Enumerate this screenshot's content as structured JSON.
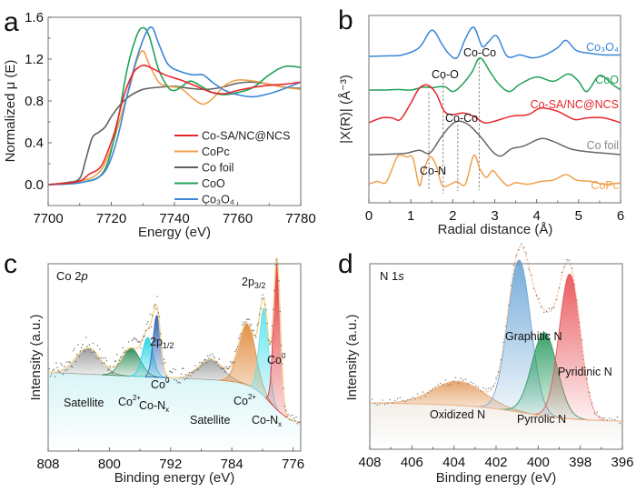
{
  "chart_data": [
    {
      "panel": "a",
      "type": "line",
      "title": "",
      "xlabel": "Energy (eV)",
      "ylabel": "Normalized μ (E)",
      "xlim": [
        7700,
        7780
      ],
      "ylim": [
        -0.2,
        1.6
      ],
      "xticks": [
        "7700",
        "7720",
        "7740",
        "7760",
        "7780"
      ],
      "yticks": [
        "0.0",
        "0.4",
        "0.8",
        "1.2",
        "1.6"
      ],
      "legend_position": "bottom-right",
      "series": [
        {
          "name": "Co-SA/NC@NCS",
          "color": "#e8262b",
          "x": [
            7700,
            7708,
            7711,
            7713,
            7716,
            7718,
            7721,
            7724,
            7727,
            7730,
            7733,
            7737,
            7742,
            7747,
            7752,
            7756,
            7760,
            7765,
            7770,
            7775,
            7780
          ],
          "y": [
            0.0,
            0.02,
            0.05,
            0.1,
            0.15,
            0.25,
            0.5,
            0.85,
            1.07,
            1.14,
            1.11,
            1.05,
            1.0,
            0.94,
            0.88,
            0.87,
            0.9,
            0.93,
            0.95,
            0.96,
            0.98
          ]
        },
        {
          "name": "CoPc",
          "color": "#f0a04b",
          "x": [
            7700,
            7708,
            7711,
            7714,
            7717,
            7720,
            7723,
            7726,
            7728,
            7730,
            7732,
            7735,
            7738,
            7742,
            7746,
            7749,
            7752,
            7756,
            7760,
            7765,
            7770,
            7775,
            7780
          ],
          "y": [
            0.0,
            0.02,
            0.04,
            0.07,
            0.15,
            0.35,
            0.65,
            0.95,
            1.18,
            1.28,
            1.15,
            0.98,
            0.94,
            0.92,
            0.82,
            0.77,
            0.82,
            0.95,
            1.0,
            0.99,
            0.96,
            0.93,
            0.91
          ]
        },
        {
          "name": "Co foil",
          "color": "#606060",
          "x": [
            7700,
            7706,
            7710,
            7712,
            7714,
            7716,
            7718,
            7720,
            7723,
            7726,
            7730,
            7735,
            7740,
            7745,
            7750,
            7755,
            7760,
            7765,
            7770,
            7775,
            7780
          ],
          "y": [
            0.0,
            0.02,
            0.06,
            0.25,
            0.45,
            0.5,
            0.55,
            0.65,
            0.77,
            0.85,
            0.91,
            0.93,
            0.94,
            0.92,
            0.91,
            0.93,
            0.97,
            0.98,
            0.96,
            0.93,
            0.92
          ]
        },
        {
          "name": "CoO",
          "color": "#22a05a",
          "x": [
            7700,
            7708,
            7712,
            7716,
            7719,
            7722,
            7725,
            7728,
            7730,
            7732,
            7735,
            7738,
            7740,
            7742,
            7745,
            7748,
            7752,
            7756,
            7760,
            7765,
            7770,
            7775,
            7780
          ],
          "y": [
            0.0,
            0.01,
            0.03,
            0.07,
            0.22,
            0.6,
            1.1,
            1.42,
            1.5,
            1.42,
            1.1,
            0.93,
            0.9,
            0.93,
            0.99,
            0.95,
            0.88,
            0.86,
            0.88,
            0.93,
            1.05,
            1.13,
            1.12
          ]
        },
        {
          "name": "Co3O4",
          "color": "#3a86d6",
          "x": [
            7700,
            7708,
            7712,
            7716,
            7719,
            7722,
            7725,
            7728,
            7731,
            7733,
            7735,
            7738,
            7742,
            7746,
            7749,
            7752,
            7756,
            7760,
            7765,
            7770,
            7775,
            7780
          ],
          "y": [
            0.0,
            0.01,
            0.03,
            0.07,
            0.18,
            0.45,
            0.85,
            1.2,
            1.45,
            1.5,
            1.35,
            1.15,
            1.08,
            1.05,
            1.05,
            0.98,
            0.9,
            0.86,
            0.84,
            0.87,
            0.92,
            0.98
          ]
        }
      ]
    },
    {
      "panel": "b",
      "type": "line",
      "title": "",
      "xlabel": "Radial distance (Å)",
      "ylabel": "|X(R)| (Å⁻³)",
      "xlim": [
        0,
        6
      ],
      "xticks": [
        "0",
        "1",
        "2",
        "3",
        "4",
        "5",
        "6"
      ],
      "note": "Curves vertically offset; arbitrary units",
      "series": [
        {
          "name": "Co3O4",
          "color": "#3a86d6",
          "offset": 5.4,
          "x": [
            0,
            0.5,
            0.8,
            1.2,
            1.5,
            1.75,
            1.9,
            2.1,
            2.3,
            2.5,
            2.7,
            2.85,
            3.05,
            3.3,
            3.6,
            3.9,
            4.2,
            4.5,
            4.7,
            4.95,
            5.3,
            5.6,
            6.0
          ],
          "y": [
            0,
            0.02,
            0.05,
            0.3,
            0.9,
            0.4,
            0.1,
            -0.05,
            0.6,
            1.0,
            0.35,
            0.5,
            0.7,
            0.0,
            0.05,
            -0.05,
            0.05,
            0.3,
            0.55,
            0.2,
            0.1,
            0.05,
            0.05
          ]
        },
        {
          "name": "CoO",
          "color": "#22a05a",
          "offset": 4.0,
          "x": [
            0,
            0.4,
            0.7,
            1.0,
            1.3,
            1.5,
            1.8,
            2.0,
            2.2,
            2.45,
            2.65,
            2.9,
            3.1,
            3.35,
            3.6,
            4.0,
            4.4,
            4.75,
            5.0,
            5.2,
            5.5,
            5.8,
            6.0
          ],
          "y": [
            0,
            0.0,
            0.02,
            0.0,
            0.1,
            0.08,
            0.12,
            -0.05,
            0.15,
            0.6,
            1.1,
            0.6,
            0.2,
            -0.05,
            0.2,
            0.45,
            0.3,
            0.55,
            0.3,
            -0.05,
            0.5,
            0.2,
            0.0
          ]
        },
        {
          "name": "Co-SA/NC@NCS",
          "color": "#e8262b",
          "offset": 2.6,
          "x": [
            0,
            0.3,
            0.55,
            0.75,
            1.0,
            1.2,
            1.4,
            1.6,
            1.8,
            2.0,
            2.25,
            2.5,
            2.75,
            3.0,
            3.4,
            3.8,
            4.1,
            4.5,
            4.9,
            5.2,
            5.6,
            6.0
          ],
          "y": [
            0,
            0.15,
            0.15,
            0.1,
            0.6,
            1.05,
            1.15,
            0.9,
            0.35,
            0.25,
            0.3,
            0.2,
            0.0,
            0.05,
            0.2,
            0.25,
            0.45,
            0.35,
            0.1,
            0.15,
            0.15,
            0.0
          ]
        },
        {
          "name": "Co foil",
          "color": "#666666",
          "offset": 1.3,
          "x": [
            0,
            0.6,
            0.9,
            1.2,
            1.45,
            1.7,
            1.95,
            2.15,
            2.4,
            2.7,
            2.95,
            3.15,
            3.4,
            3.7,
            4.1,
            4.4,
            4.8,
            5.2,
            5.6,
            6.0
          ],
          "y": [
            0,
            0.02,
            0.05,
            0.15,
            0.05,
            0.55,
            1.0,
            1.15,
            1.0,
            0.55,
            0.1,
            -0.05,
            0.2,
            0.3,
            0.55,
            0.45,
            0.2,
            0.1,
            0.05,
            0.0
          ]
        },
        {
          "name": "CoPc",
          "color": "#f0a04b",
          "offset": 0.0,
          "x": [
            0,
            0.2,
            0.4,
            0.55,
            0.7,
            0.9,
            1.05,
            1.2,
            1.3,
            1.45,
            1.6,
            1.75,
            1.95,
            2.1,
            2.3,
            2.5,
            2.65,
            2.8,
            2.95,
            3.1,
            3.3,
            3.5,
            3.8,
            4.1,
            4.4,
            4.7,
            4.95,
            5.3,
            5.6,
            6.0
          ],
          "y": [
            0.05,
            0.15,
            0.1,
            0.6,
            1.1,
            1.05,
            1.0,
            0.0,
            0.5,
            1.05,
            0.75,
            0.0,
            0.05,
            0.15,
            0.05,
            1.1,
            0.6,
            0.3,
            0.55,
            0.3,
            0.0,
            0.1,
            0.05,
            0.15,
            0.2,
            0.4,
            0.2,
            0.15,
            0.05,
            0.1
          ]
        }
      ],
      "annotations": [
        {
          "text": "Co-Co",
          "x": 2.63,
          "series": "Co3O4"
        },
        {
          "text": "Co-O",
          "x": 1.77,
          "series": "CoO"
        },
        {
          "text": "Co-Co",
          "x": 2.12,
          "series": "Co foil"
        },
        {
          "text": "Co-N",
          "x": 1.43,
          "series": "CoPc"
        }
      ],
      "reference_lines_x": [
        1.43,
        1.77,
        2.12,
        2.63
      ]
    },
    {
      "panel": "c",
      "type": "area",
      "title": "Co 2p",
      "xlabel": "Binding energy (eV)",
      "ylabel": "Intensity (a.u.)",
      "xlim": [
        808,
        775
      ],
      "xticks": [
        "808",
        "800",
        "792",
        "784",
        "776"
      ],
      "peaks": [
        {
          "name": "Satellite",
          "center": 802.8,
          "height": 0.14,
          "width": 1.6,
          "color": "#9a9a9a"
        },
        {
          "name": "Co2+",
          "center": 797.2,
          "height": 0.15,
          "width": 1.2,
          "color": "#2e8b57"
        },
        {
          "name": "Co-Nx",
          "center": 795.0,
          "height": 0.21,
          "width": 0.7,
          "color": "#22d3e6"
        },
        {
          "name": "Co0",
          "center": 793.8,
          "height": 0.33,
          "width": 0.5,
          "color": "#2b5fb0"
        },
        {
          "name": "Satellite",
          "center": 786.8,
          "height": 0.11,
          "width": 1.6,
          "color": "#a0a0a0"
        },
        {
          "name": "Co2+",
          "center": 782.0,
          "height": 0.33,
          "width": 1.1,
          "color": "#e08a3c"
        },
        {
          "name": "Co-Nx",
          "center": 779.8,
          "height": 0.47,
          "width": 0.6,
          "color": "#5fe3ee"
        },
        {
          "name": "Co0",
          "center": 778.1,
          "height": 0.8,
          "width": 0.45,
          "color": "#e0262b"
        }
      ],
      "annotations": [
        "2p1/2",
        "2p3/2"
      ]
    },
    {
      "panel": "d",
      "type": "area",
      "title": "N 1s",
      "xlabel": "Binding energy (eV)",
      "ylabel": "Intensity (a.u.)",
      "xlim": [
        408,
        396
      ],
      "xticks": [
        "408",
        "406",
        "404",
        "402",
        "400",
        "398",
        "396"
      ],
      "peaks": [
        {
          "name": "Oxidized N",
          "center": 403.8,
          "height": 0.13,
          "width": 1.2,
          "color": "#e5a066"
        },
        {
          "name": "Graphitic N",
          "center": 400.9,
          "height": 0.82,
          "width": 0.55,
          "color": "#6fa8d8"
        },
        {
          "name": "Pyrrolic N",
          "center": 399.7,
          "height": 0.45,
          "width": 0.6,
          "color": "#2e9e62"
        },
        {
          "name": "Pyridinic N",
          "center": 398.5,
          "height": 0.78,
          "width": 0.5,
          "color": "#e9545a"
        }
      ]
    }
  ],
  "panels": {
    "a": {
      "letter": "a",
      "xlabel": "Energy (eV)",
      "ylabel": "Normalized μ (E)",
      "xticks": [
        "7700",
        "7720",
        "7740",
        "7760",
        "7780"
      ],
      "yticks": [
        "0.0",
        "0.4",
        "0.8",
        "1.2",
        "1.6"
      ],
      "legend": [
        {
          "label": "Co-SA/NC@NCS",
          "color": "#e8262b"
        },
        {
          "label": "CoPc",
          "color": "#f0a04b"
        },
        {
          "label": "Co foil",
          "color": "#606060"
        },
        {
          "label": "CoO",
          "color": "#22a05a"
        },
        {
          "label": "Co₃O₄",
          "color": "#3a86d6"
        }
      ]
    },
    "b": {
      "letter": "b",
      "xlabel": "Radial distance (Å)",
      "ylabel": "|X(R)| (Å⁻³)",
      "xticks": [
        "0",
        "1",
        "2",
        "3",
        "4",
        "5",
        "6"
      ],
      "series_labels": [
        "Co₃O₄",
        "CoO",
        "Co-SA/NC@NCS",
        "Co foil",
        "CoPc"
      ],
      "annotations": [
        "Co-Co",
        "Co-O",
        "Co-Co",
        "Co-N"
      ]
    },
    "c": {
      "letter": "c",
      "title_main": "Co 2",
      "title_italic": "p",
      "xlabel": "Binding energy (eV)",
      "ylabel": "Intensity (a.u.)",
      "xticks": [
        "808",
        "800",
        "792",
        "784",
        "776"
      ],
      "labels": {
        "p12_main": "2p",
        "p12_sub": "1/2",
        "p32_main": "2p",
        "p32_sub": "3/2",
        "sat1": "Satellite",
        "co2_1": "Co",
        "co2_1_sup": "2+",
        "conx1": "Co-N",
        "conx1_sub": "x",
        "co0_1": "Co",
        "co0_1_sup": "0",
        "sat2": "Satellite",
        "co2_2": "Co",
        "co2_2_sup": "2+",
        "conx2": "Co-N",
        "conx2_sub": "x",
        "co0_2": "Co",
        "co0_2_sup": "0"
      }
    },
    "d": {
      "letter": "d",
      "title_main": "N 1",
      "title_italic": "s",
      "xlabel": "Binding energy (eV)",
      "ylabel": "Intensity (a.u.)",
      "xticks": [
        "408",
        "406",
        "404",
        "402",
        "400",
        "398",
        "396"
      ],
      "labels": {
        "graphitic": "Graphitic N",
        "pyridinic": "Pyridinic N",
        "pyrrolic": "Pyrrolic N",
        "oxidized": "Oxidized N"
      }
    }
  }
}
